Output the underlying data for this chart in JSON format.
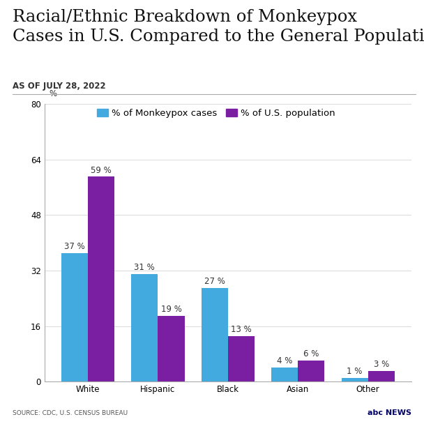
{
  "title": "Racial/Ethnic Breakdown of Monkeypox\nCases in U.S. Compared to the General Population",
  "subtitle": "AS OF JULY 28, 2022",
  "categories": [
    "White",
    "Hispanic",
    "Black",
    "Asian",
    "Other"
  ],
  "monkeypox_values": [
    37,
    31,
    27,
    4,
    1
  ],
  "population_values": [
    59,
    19,
    13,
    6,
    3
  ],
  "monkeypox_color": "#42AADF",
  "population_color": "#7B1FA2",
  "ylim": [
    0,
    80
  ],
  "yticks": [
    0,
    16,
    32,
    48,
    64,
    80
  ],
  "ytick_labels": [
    "0",
    "16",
    "32",
    "48",
    "64",
    "80"
  ],
  "ylabel_label": "%",
  "legend_monkeypox": "% of Monkeypox cases",
  "legend_population": "% of U.S. population",
  "source_text": "SOURCE: CDC, U.S. CENSUS BUREAU",
  "background_color": "#ffffff",
  "bar_width": 0.38,
  "title_fontsize": 17.5,
  "subtitle_fontsize": 8.5,
  "tick_fontsize": 8.5,
  "legend_fontsize": 9.5,
  "source_fontsize": 6.5,
  "bar_label_fontsize": 8.5
}
